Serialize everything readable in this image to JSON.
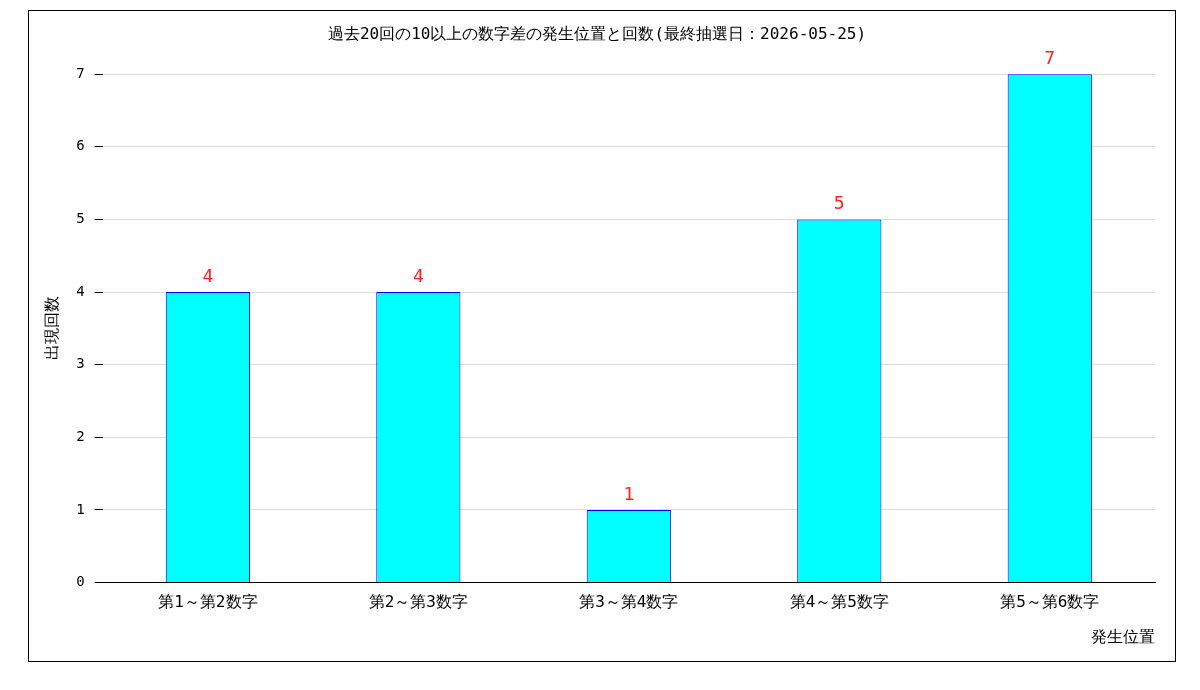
{
  "chart_data": {
    "type": "bar",
    "title": "過去20回の10以上の数字差の発生位置と回数(最終抽選日：2026-05-25)",
    "xlabel": "発生位置",
    "ylabel": "出現回数",
    "categories": [
      "第1～第2数字",
      "第2～第3数字",
      "第3～第4数字",
      "第4～第5数字",
      "第5～第6数字"
    ],
    "values": [
      4,
      4,
      1,
      5,
      7
    ],
    "color": "#00ffff",
    "ylim": [
      0,
      7
    ],
    "yticks": [
      0,
      1,
      2,
      3,
      4,
      5,
      6,
      7
    ],
    "grid": "y",
    "data_labels": true,
    "legend": false
  }
}
